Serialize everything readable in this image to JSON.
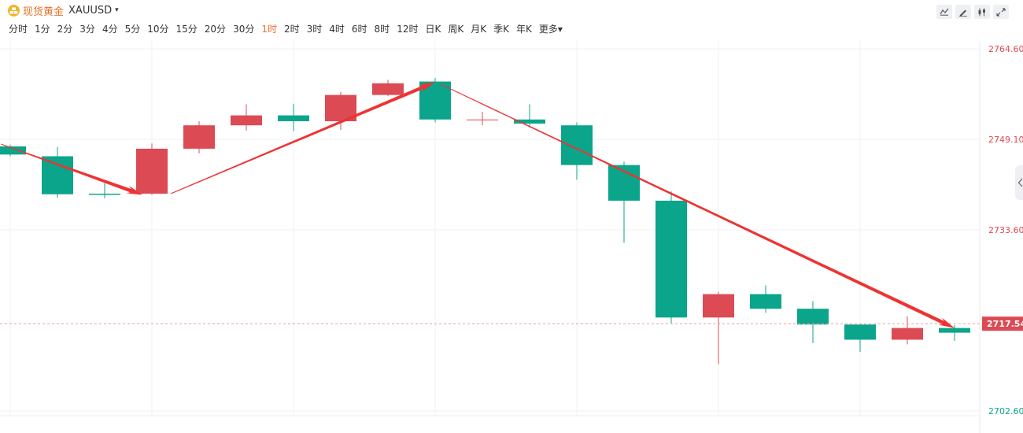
{
  "header": {
    "symbol_name": "现货黄金",
    "symbol_code": "XAUUSD",
    "symbol_icon": "gold-coin-icon",
    "caret": "▾"
  },
  "intervals": [
    "分时",
    "1分",
    "2分",
    "3分",
    "4分",
    "5分",
    "10分",
    "15分",
    "20分",
    "30分",
    "1时",
    "2时",
    "3时",
    "4时",
    "6时",
    "8时",
    "12时",
    "日K",
    "周K",
    "月K",
    "季K",
    "年K",
    "更多▾"
  ],
  "active_interval": "1时",
  "toolbar": [
    "line-style-icon",
    "draw-icon",
    "candle-icon",
    "fullscreen-icon"
  ],
  "colors": {
    "up": "#dc4a54",
    "down": "#0aa58a",
    "accent": "#e8712a",
    "arrow": "#ee3333",
    "grid": "#f0f1f4",
    "price_line": "#f09aa0"
  },
  "chart_data": {
    "type": "candlestick",
    "ylim": [
      2702.6,
      2764.6
    ],
    "y_ticks": [
      "2764.60",
      "2749.10",
      "2733.60",
      "2702.60"
    ],
    "current_price": "2717.54",
    "candles": [
      {
        "open": 2747.9,
        "close": 2746.5,
        "high": 2748.2,
        "low": 2746.2
      },
      {
        "open": 2746.2,
        "close": 2739.7,
        "high": 2747.8,
        "low": 2739.1
      },
      {
        "open": 2739.8,
        "close": 2739.6,
        "high": 2741.6,
        "low": 2739.0
      },
      {
        "open": 2739.8,
        "close": 2747.5,
        "high": 2748.4,
        "low": 2739.6
      },
      {
        "open": 2747.5,
        "close": 2751.5,
        "high": 2752.2,
        "low": 2746.7
      },
      {
        "open": 2751.5,
        "close": 2753.2,
        "high": 2755.1,
        "low": 2750.6
      },
      {
        "open": 2753.2,
        "close": 2752.2,
        "high": 2755.2,
        "low": 2750.5
      },
      {
        "open": 2752.2,
        "close": 2756.7,
        "high": 2757.2,
        "low": 2750.7
      },
      {
        "open": 2756.7,
        "close": 2758.7,
        "high": 2759.3,
        "low": 2756.5
      },
      {
        "open": 2759.0,
        "close": 2752.5,
        "high": 2759.6,
        "low": 2752.0
      },
      {
        "open": 2752.5,
        "close": 2752.5,
        "high": 2753.8,
        "low": 2751.5
      },
      {
        "open": 2752.5,
        "close": 2751.8,
        "high": 2755.1,
        "low": 2751.1
      },
      {
        "open": 2751.5,
        "close": 2744.7,
        "high": 2752.0,
        "low": 2742.2
      },
      {
        "open": 2744.7,
        "close": 2738.6,
        "high": 2745.3,
        "low": 2731.4
      },
      {
        "open": 2738.6,
        "close": 2718.6,
        "high": 2740.2,
        "low": 2717.5
      },
      {
        "open": 2718.6,
        "close": 2722.6,
        "high": 2723.0,
        "low": 2710.6
      },
      {
        "open": 2722.6,
        "close": 2720.1,
        "high": 2724.1,
        "low": 2719.4
      },
      {
        "open": 2720.1,
        "close": 2717.4,
        "high": 2721.4,
        "low": 2714.2
      },
      {
        "open": 2717.4,
        "close": 2714.8,
        "high": 2717.4,
        "low": 2712.7
      },
      {
        "open": 2714.8,
        "close": 2716.8,
        "high": 2718.8,
        "low": 2714.0
      },
      {
        "open": 2716.8,
        "close": 2716.0,
        "high": 2717.3,
        "low": 2714.6
      }
    ],
    "trend_arrows": [
      {
        "from": [
          -0.2,
          2748.3
        ],
        "to": [
          2.8,
          2739.6
        ]
      },
      {
        "from": [
          3.4,
          2739.8
        ],
        "to": [
          9.0,
          2758.9
        ]
      },
      {
        "from": [
          9.1,
          2758.6
        ],
        "to": [
          20.0,
          2716.8
        ]
      }
    ]
  }
}
